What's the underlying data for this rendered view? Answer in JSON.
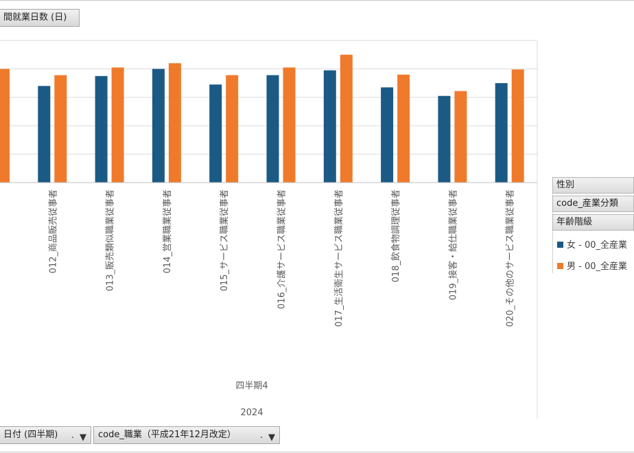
{
  "value_field_label": "間就業日数 (日)",
  "filters": {
    "date_label": "日付 (四半期)",
    "occupation_label": "code_職業（平成21年12月改定）"
  },
  "legend": {
    "fields": [
      "性別",
      "code_産業分類",
      "年齢階級"
    ],
    "entries": [
      {
        "label": "女 - 00_全産業",
        "color": "#1b5a85"
      },
      {
        "label": "男 - 00_全産業",
        "color": "#f07a2c"
      }
    ]
  },
  "axis_groups": {
    "quarter": "四半期4",
    "year": "2024"
  },
  "chart_data": {
    "type": "bar",
    "categories": [
      "",
      "012_商品販売従事者",
      "013_販売類似職業従事者",
      "014_営業職業従事者",
      "015_サービス職業従事者",
      "016_介護サービス職業従事者",
      "017_生活衛生サービス職業従事者",
      "018_飲食物調理従事者",
      "019_接客・給仕職業従事者",
      "020_その他のサービス職業従事者"
    ],
    "series": [
      {
        "name": "女 - 00_全産業",
        "color": "#1b5a85",
        "values": [
          null,
          3.4,
          3.75,
          4.0,
          3.45,
          3.78,
          3.95,
          3.35,
          3.05,
          3.5
        ]
      },
      {
        "name": "男 - 00_全産業",
        "color": "#f07a2c",
        "values": [
          4.0,
          3.78,
          4.05,
          4.2,
          3.78,
          4.05,
          4.5,
          3.8,
          3.22,
          3.98
        ]
      }
    ],
    "ylim": [
      0,
      5
    ],
    "grid": true,
    "legend_position": "right"
  }
}
